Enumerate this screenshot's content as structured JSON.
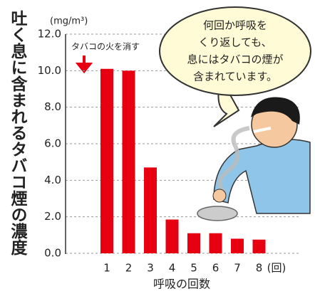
{
  "chart_data": {
    "type": "bar",
    "y_label": "吐く息に含まれるタバコ煙の濃度",
    "y_unit": "(mg/m³)",
    "x_label": "呼吸の回数",
    "x_unit": "(回)",
    "annotation": "タバコの火を消す",
    "speech": [
      "何回か呼吸を",
      "くり返しても、",
      "息にはタバコの煙が",
      "含まれています。"
    ],
    "categories": [
      "1",
      "2",
      "3",
      "4",
      "5",
      "6",
      "7",
      "8"
    ],
    "values": [
      10.1,
      10.0,
      4.7,
      1.85,
      1.1,
      1.1,
      0.8,
      0.75
    ],
    "color": "#e60012",
    "ylim": [
      0,
      12
    ],
    "yticks": [
      {
        "value": 0,
        "label": "0.0"
      },
      {
        "value": 2,
        "label": "2.0"
      },
      {
        "value": 4,
        "label": "4.0"
      },
      {
        "value": 6,
        "label": "6.0"
      },
      {
        "value": 8,
        "label": "8.0"
      },
      {
        "value": 10,
        "label": "10.0"
      },
      {
        "value": 12,
        "label": "12.0"
      }
    ],
    "grid": true
  }
}
